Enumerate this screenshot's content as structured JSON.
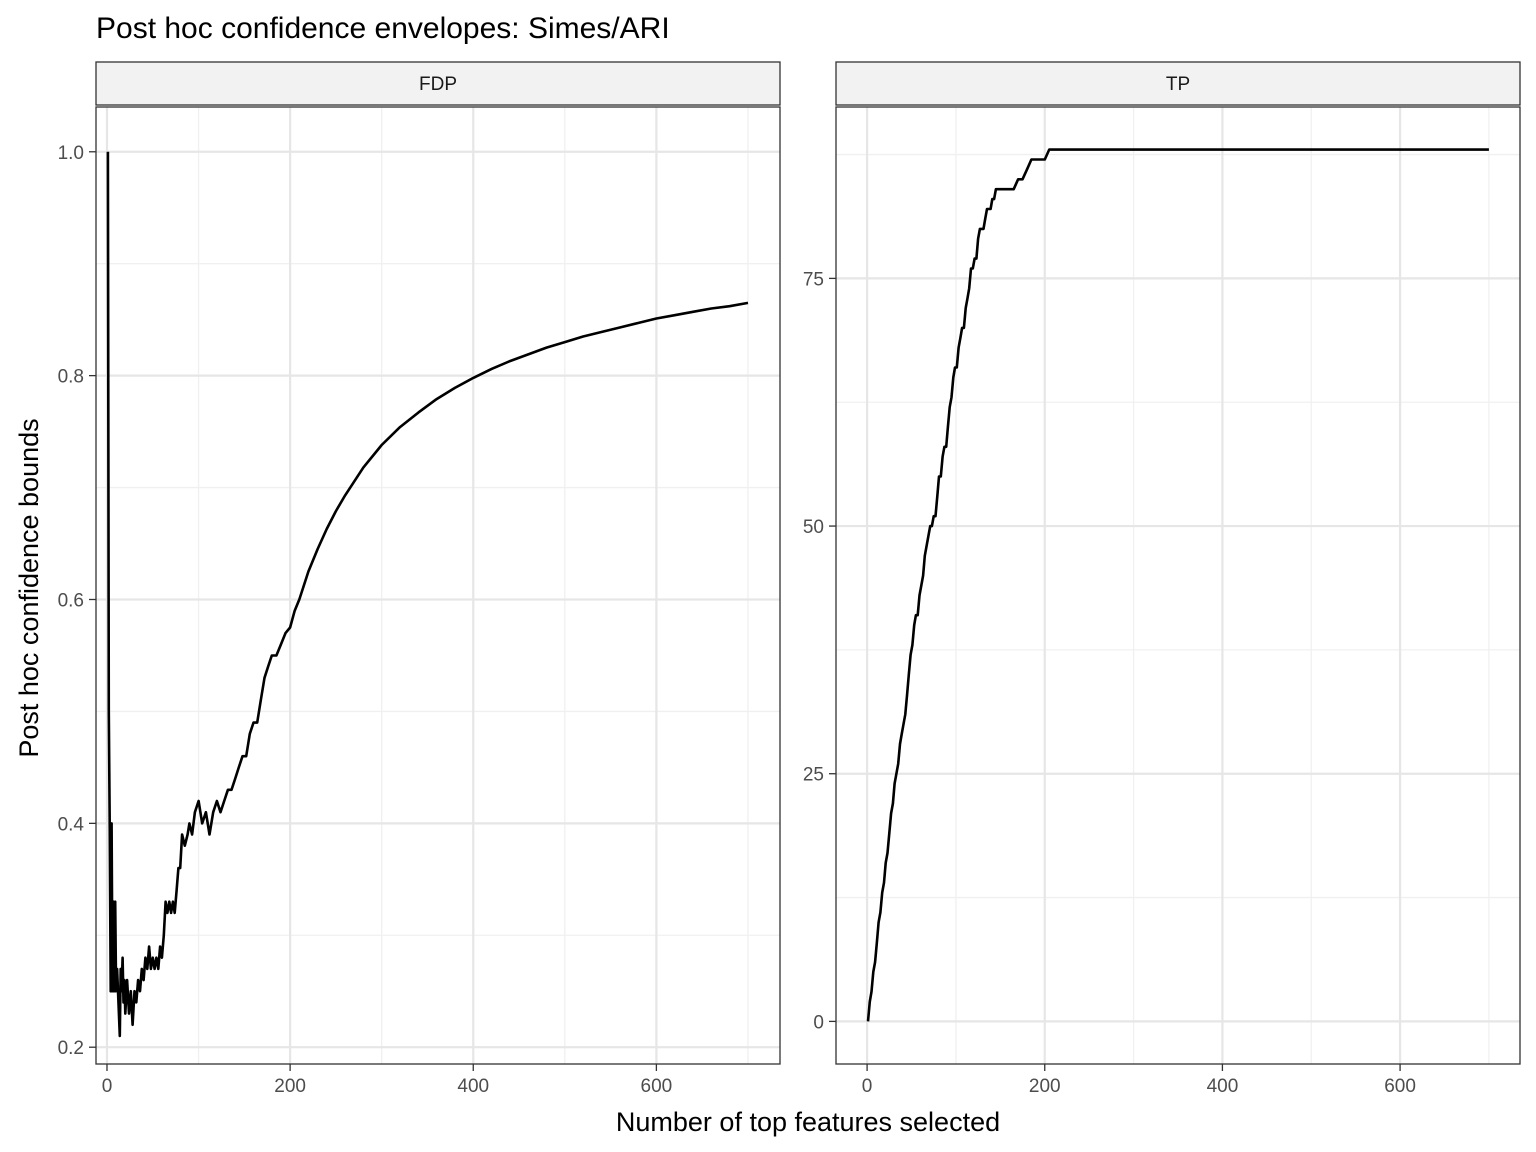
{
  "title": "Post hoc confidence envelopes: Simes/ARI",
  "xlabel": "Number of top features selected",
  "ylabel": "Post hoc confidence bounds",
  "chart_data": [
    {
      "type": "line",
      "panel": "FDP",
      "xlim": [
        -12,
        735
      ],
      "ylim": [
        0.185,
        1.04
      ],
      "x_ticks": [
        0,
        200,
        400,
        600
      ],
      "x_tick_labels": [
        "0",
        "200",
        "400",
        "600"
      ],
      "y_ticks": [
        0.2,
        0.4,
        0.6,
        0.8,
        1.0
      ],
      "y_tick_labels": [
        "0.2",
        "0.4",
        "0.6",
        "0.8",
        "1.0"
      ],
      "grid": true,
      "series": [
        {
          "x": [
            1,
            2,
            3,
            4,
            5,
            6,
            7,
            8,
            9,
            10,
            11,
            12,
            13,
            14,
            15,
            16,
            17,
            18,
            19,
            20,
            22,
            24,
            26,
            28,
            30,
            32,
            34,
            36,
            38,
            40,
            42,
            44,
            46,
            48,
            50,
            52,
            54,
            56,
            58,
            60,
            62,
            64,
            66,
            68,
            70,
            72,
            74,
            76,
            78,
            80,
            82,
            85,
            88,
            90,
            93,
            96,
            100,
            104,
            108,
            112,
            116,
            120,
            124,
            128,
            132,
            136,
            140,
            144,
            148,
            152,
            156,
            160,
            164,
            168,
            172,
            176,
            180,
            185,
            190,
            195,
            200,
            205,
            210,
            220,
            230,
            240,
            250,
            260,
            280,
            300,
            320,
            340,
            360,
            380,
            400,
            420,
            440,
            460,
            480,
            500,
            520,
            540,
            560,
            580,
            600,
            620,
            640,
            660,
            680,
            700
          ],
          "values": [
            1.0,
            0.5,
            0.4,
            0.25,
            0.4,
            0.25,
            0.33,
            0.25,
            0.33,
            0.25,
            0.27,
            0.25,
            0.23,
            0.21,
            0.27,
            0.25,
            0.28,
            0.24,
            0.26,
            0.23,
            0.26,
            0.23,
            0.25,
            0.22,
            0.25,
            0.24,
            0.26,
            0.25,
            0.27,
            0.26,
            0.28,
            0.27,
            0.29,
            0.27,
            0.28,
            0.27,
            0.28,
            0.27,
            0.29,
            0.28,
            0.3,
            0.33,
            0.32,
            0.33,
            0.32,
            0.33,
            0.32,
            0.34,
            0.36,
            0.36,
            0.39,
            0.38,
            0.39,
            0.4,
            0.39,
            0.41,
            0.42,
            0.4,
            0.41,
            0.39,
            0.41,
            0.42,
            0.41,
            0.42,
            0.43,
            0.43,
            0.44,
            0.45,
            0.46,
            0.46,
            0.48,
            0.49,
            0.49,
            0.51,
            0.53,
            0.54,
            0.55,
            0.55,
            0.56,
            0.57,
            0.575,
            0.59,
            0.6,
            0.625,
            0.645,
            0.663,
            0.679,
            0.693,
            0.718,
            0.738,
            0.754,
            0.767,
            0.779,
            0.789,
            0.798,
            0.806,
            0.813,
            0.819,
            0.825,
            0.83,
            0.835,
            0.839,
            0.843,
            0.847,
            0.851,
            0.854,
            0.857,
            0.86,
            0.862,
            0.865
          ]
        }
      ]
    },
    {
      "type": "line",
      "panel": "TP",
      "xlim": [
        -35,
        735
      ],
      "ylim": [
        -4.3,
        92.3
      ],
      "x_ticks": [
        0,
        200,
        400,
        600
      ],
      "x_tick_labels": [
        "0",
        "200",
        "400",
        "600"
      ],
      "y_ticks": [
        0,
        25,
        50,
        75
      ],
      "y_tick_labels": [
        "0",
        "25",
        "50",
        "75"
      ],
      "grid": true,
      "series": [
        {
          "x": [
            1,
            3,
            5,
            7,
            9,
            11,
            13,
            15,
            17,
            19,
            21,
            23,
            25,
            27,
            29,
            31,
            33,
            35,
            37,
            39,
            41,
            43,
            45,
            47,
            49,
            51,
            53,
            55,
            57,
            59,
            61,
            63,
            65,
            67,
            69,
            71,
            73,
            75,
            77,
            79,
            81,
            83,
            85,
            87,
            89,
            91,
            93,
            95,
            97,
            99,
            101,
            103,
            105,
            107,
            109,
            111,
            113,
            115,
            117,
            119,
            121,
            123,
            125,
            127,
            129,
            131,
            133,
            135,
            137,
            139,
            141,
            143,
            145,
            147,
            149,
            151,
            153,
            155,
            157,
            159,
            161,
            165,
            170,
            175,
            180,
            185,
            190,
            195,
            200,
            205,
            210,
            250,
            300,
            400,
            500,
            600,
            700
          ],
          "values": [
            0,
            2,
            3,
            5,
            6,
            8,
            10,
            11,
            13,
            14,
            16,
            17,
            19,
            21,
            22,
            24,
            25,
            26,
            28,
            29,
            30,
            31,
            33,
            35,
            37,
            38,
            40,
            41,
            41,
            43,
            44,
            45,
            47,
            48,
            49,
            50,
            50,
            51,
            51,
            53,
            55,
            55,
            57,
            58,
            58,
            60,
            62,
            63,
            65,
            66,
            66,
            68,
            69,
            70,
            70,
            72,
            73,
            74,
            76,
            76,
            77,
            77,
            79,
            80,
            80,
            80,
            81,
            82,
            82,
            82,
            83,
            83,
            84,
            84,
            84,
            84,
            84,
            84,
            84,
            84,
            84,
            84,
            85,
            85,
            86,
            87,
            87,
            87,
            87,
            88,
            88,
            88,
            88,
            88,
            88,
            88,
            88
          ]
        }
      ]
    }
  ]
}
